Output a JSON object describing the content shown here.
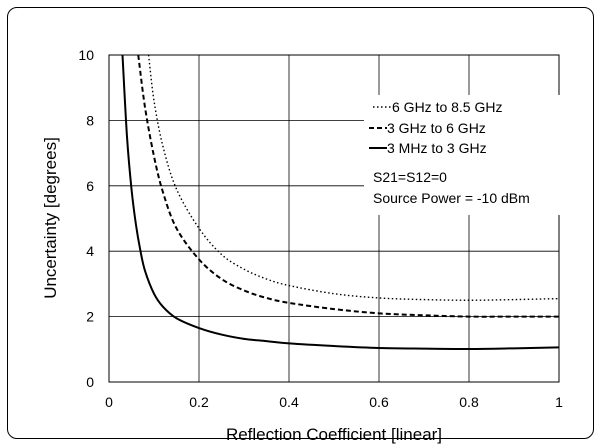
{
  "chart_data": {
    "type": "line",
    "title": "",
    "xlabel": "Reflection Coefficient [linear]",
    "ylabel": "Uncertainty [degrees]",
    "xlim": [
      0,
      1
    ],
    "ylim": [
      0,
      10
    ],
    "x_ticks": [
      "0",
      "0.2",
      "0.4",
      "0.6",
      "0.8",
      "1"
    ],
    "y_ticks": [
      "0",
      "2",
      "4",
      "6",
      "8",
      "10"
    ],
    "grid": true,
    "legend_position": "top-right",
    "annotations": [
      "S21=S12=0",
      "Source Power = -10 dBm"
    ],
    "series": [
      {
        "name": "6 GHz to 8.5 GHz",
        "style": "dotted",
        "color": "#000000",
        "x": [
          0.088,
          0.1,
          0.12,
          0.15,
          0.2,
          0.25,
          0.3,
          0.35,
          0.4,
          0.5,
          0.6,
          0.7,
          0.8,
          0.9,
          1.0
        ],
        "y": [
          10.0,
          8.6,
          7.2,
          5.9,
          4.7,
          3.9,
          3.45,
          3.15,
          2.95,
          2.7,
          2.57,
          2.52,
          2.5,
          2.52,
          2.55
        ]
      },
      {
        "name": "3 GHz to 6 GHz",
        "style": "dashed",
        "color": "#000000",
        "x": [
          0.065,
          0.08,
          0.1,
          0.12,
          0.15,
          0.2,
          0.25,
          0.3,
          0.35,
          0.4,
          0.5,
          0.6,
          0.7,
          0.8,
          0.9,
          1.0
        ],
        "y": [
          10.0,
          8.4,
          6.9,
          5.8,
          4.7,
          3.75,
          3.15,
          2.8,
          2.57,
          2.42,
          2.23,
          2.1,
          2.04,
          2.0,
          2.0,
          2.0
        ]
      },
      {
        "name": "3 MHz to 3 GHz",
        "style": "solid",
        "color": "#000000",
        "x": [
          0.03,
          0.04,
          0.05,
          0.06,
          0.07,
          0.08,
          0.1,
          0.12,
          0.15,
          0.2,
          0.25,
          0.3,
          0.35,
          0.4,
          0.5,
          0.6,
          0.7,
          0.8,
          0.9,
          1.0
        ],
        "y": [
          10.0,
          7.5,
          5.9,
          4.8,
          4.0,
          3.4,
          2.7,
          2.3,
          1.95,
          1.65,
          1.45,
          1.32,
          1.25,
          1.18,
          1.1,
          1.04,
          1.02,
          1.01,
          1.03,
          1.06
        ]
      }
    ]
  }
}
